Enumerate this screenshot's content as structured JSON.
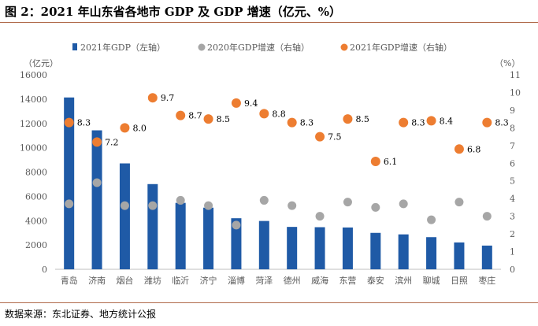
{
  "title": "图 2：2021 年山东省各地市 GDP 及 GDP 增速（亿元、%）",
  "source": "数据来源：东北证券、地方统计公报",
  "chart_data": {
    "type": "bar",
    "categories": [
      "青岛",
      "济南",
      "烟台",
      "潍坊",
      "临沂",
      "济宁",
      "淄博",
      "菏泽",
      "德州",
      "威海",
      "东营",
      "泰安",
      "滨州",
      "聊城",
      "日照",
      "枣庄"
    ],
    "series": [
      {
        "name": "2021年GDP（左轴）",
        "type": "bar",
        "axis": "left",
        "color": "#1f5aa6",
        "values": [
          14136,
          11432,
          8712,
          7010,
          5465,
          5070,
          4200,
          3976,
          3488,
          3464,
          3441,
          2996,
          2873,
          2642,
          2211,
          1951
        ]
      },
      {
        "name": "2020年GDP增速（右轴）",
        "type": "scatter",
        "axis": "right",
        "color": "#a6a6a6",
        "values": [
          3.7,
          4.9,
          3.6,
          3.6,
          3.9,
          3.6,
          2.5,
          3.9,
          3.6,
          3.0,
          3.8,
          3.5,
          3.7,
          2.8,
          3.8,
          3.0
        ]
      },
      {
        "name": "2021年GDP增速（右轴）",
        "type": "scatter",
        "axis": "right",
        "color": "#ed7d31",
        "values": [
          8.3,
          7.2,
          8.0,
          9.7,
          8.7,
          8.5,
          9.4,
          8.8,
          8.3,
          7.5,
          8.5,
          6.1,
          8.3,
          8.4,
          6.8,
          8.3
        ],
        "labels": [
          "8.3",
          "7.2",
          "8.0",
          "9.7",
          "8.7",
          "8.5",
          "9.4",
          "8.8",
          "8.3",
          "7.5",
          "8.5",
          "6.1",
          "8.3",
          "8.4",
          "6.8",
          "8.3"
        ]
      }
    ],
    "left_axis": {
      "unit": "（亿元）",
      "ylim": [
        0,
        16000
      ],
      "ticks": [
        "0",
        "2000",
        "4000",
        "6000",
        "8000",
        "10000",
        "12000",
        "14000",
        "16000"
      ]
    },
    "right_axis": {
      "unit": "（%）",
      "ylim": [
        0,
        11
      ],
      "ticks": [
        "0",
        "1",
        "2",
        "3",
        "4",
        "5",
        "6",
        "7",
        "8",
        "9",
        "10",
        "11"
      ]
    },
    "legend_position": "top",
    "grid": false
  }
}
